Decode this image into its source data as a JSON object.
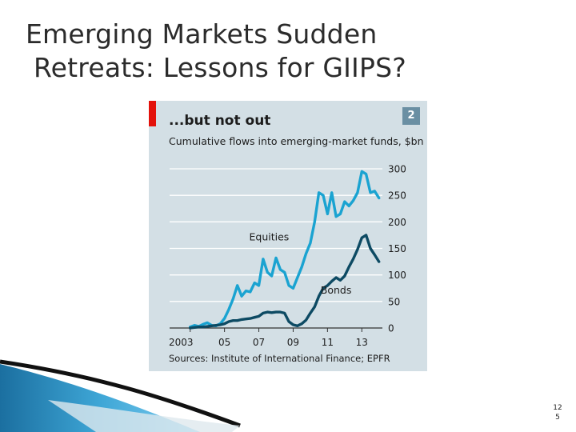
{
  "slide": {
    "title_line1": "Emerging Markets Sudden",
    "title_line2": "Retreats: Lessons for GIIPS?",
    "page_number_line1": "12",
    "page_number_line2": "5"
  },
  "colors": {
    "panel_background": "#d3dfe5",
    "equities_line": "#1aa3d1",
    "bonds_line": "#0d4a63",
    "accent_red": "#e3120b",
    "badge": "#6a8fa3"
  },
  "chart_data": {
    "type": "line",
    "title": "...but not out",
    "subtitle": "Cumulative flows into emerging-market funds, $bn",
    "badge": "2",
    "source": "Sources: Institute of International Finance; EPFR",
    "x_tick_labels": [
      "2003",
      "05",
      "07",
      "09",
      "11",
      "13"
    ],
    "x_ticks": [
      2003,
      2005,
      2007,
      2009,
      2011,
      2013
    ],
    "y_ticks": [
      0,
      50,
      100,
      150,
      200,
      250,
      300
    ],
    "xlim": [
      2001.8,
      2014.2
    ],
    "ylim": [
      0,
      300
    ],
    "y_axis_side": "right",
    "grid": true,
    "series": [
      {
        "name": "Equities",
        "color": "#1aa3d1",
        "x": [
          2003.0,
          2003.25,
          2003.5,
          2003.75,
          2004.0,
          2004.25,
          2004.5,
          2004.75,
          2005.0,
          2005.25,
          2005.5,
          2005.75,
          2006.0,
          2006.25,
          2006.5,
          2006.75,
          2007.0,
          2007.25,
          2007.5,
          2007.75,
          2008.0,
          2008.25,
          2008.5,
          2008.75,
          2009.0,
          2009.25,
          2009.5,
          2009.75,
          2010.0,
          2010.25,
          2010.5,
          2010.75,
          2011.0,
          2011.25,
          2011.5,
          2011.75,
          2012.0,
          2012.25,
          2012.5,
          2012.75,
          2013.0,
          2013.25,
          2013.5,
          2013.75,
          2014.0
        ],
        "y": [
          2,
          5,
          3,
          7,
          10,
          5,
          4,
          8,
          18,
          35,
          55,
          80,
          60,
          70,
          68,
          85,
          80,
          130,
          105,
          98,
          132,
          110,
          105,
          80,
          75,
          95,
          115,
          140,
          160,
          200,
          255,
          250,
          215,
          255,
          210,
          215,
          238,
          230,
          240,
          255,
          295,
          290,
          255,
          258,
          245
        ]
      },
      {
        "name": "Bonds",
        "color": "#0d4a63",
        "x": [
          2003.0,
          2003.25,
          2003.5,
          2003.75,
          2004.0,
          2004.25,
          2004.5,
          2004.75,
          2005.0,
          2005.25,
          2005.5,
          2005.75,
          2006.0,
          2006.25,
          2006.5,
          2006.75,
          2007.0,
          2007.25,
          2007.5,
          2007.75,
          2008.0,
          2008.25,
          2008.5,
          2008.75,
          2009.0,
          2009.25,
          2009.5,
          2009.75,
          2010.0,
          2010.25,
          2010.5,
          2010.75,
          2011.0,
          2011.25,
          2011.5,
          2011.75,
          2012.0,
          2012.25,
          2012.5,
          2012.75,
          2013.0,
          2013.25,
          2013.5,
          2013.75,
          2014.0
        ],
        "y": [
          0,
          1,
          2,
          2,
          3,
          4,
          5,
          6,
          8,
          12,
          14,
          14,
          16,
          17,
          18,
          20,
          22,
          28,
          30,
          29,
          30,
          30,
          28,
          12,
          6,
          4,
          8,
          15,
          28,
          40,
          60,
          75,
          80,
          88,
          95,
          90,
          98,
          115,
          130,
          148,
          170,
          175,
          150,
          138,
          125
        ]
      }
    ],
    "annotations": [
      {
        "text": "Equities",
        "x": 2007.6,
        "y": 165
      },
      {
        "text": "Bonds",
        "x": 2011.5,
        "y": 65
      }
    ]
  }
}
